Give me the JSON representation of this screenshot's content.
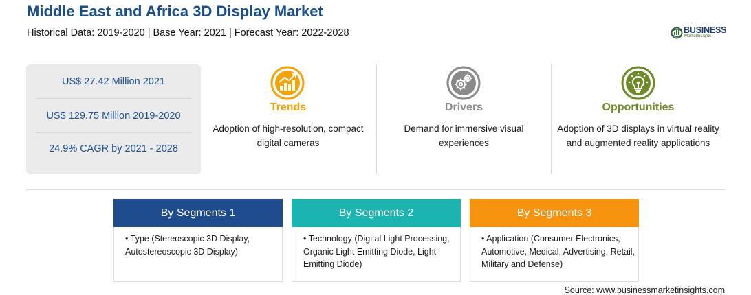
{
  "header": {
    "title": "Middle East and Africa 3D Display Market",
    "subtitle": "Historical Data: 2019-2020 | Base Year: 2021 | Forecast Year: 2022-2028"
  },
  "logo": {
    "name": "BUSINESS",
    "tagline": "MarketInsights"
  },
  "stats": [
    "US$ 27.42 Million 2021",
    "US$ 129.75 Million 2019-2020",
    "24.9% CAGR by 2021 - 2028"
  ],
  "columns": [
    {
      "heading": "Trends",
      "icon": "trending-chart-icon",
      "color": "#f0a30a",
      "description": "Adoption of high-resolution, compact digital cameras"
    },
    {
      "heading": "Drivers",
      "icon": "gears-icon",
      "color": "#8a8a8a",
      "description": "Demand for immersive visual experiences"
    },
    {
      "heading": "Opportunities",
      "icon": "lightbulb-icon",
      "color": "#6e8a2a",
      "description": "Adoption of 3D displays in virtual reality and augmented reality applications"
    }
  ],
  "segments": [
    {
      "title": "By Segments 1",
      "color": "#1d4b8c",
      "text": "• Type (Stereoscopic 3D Display, Autostereoscopic 3D Display)"
    },
    {
      "title": "By Segments 2",
      "color": "#1bb5b1",
      "text": "• Technology (Digital Light Processing, Organic Light Emitting Diode, Light Emitting Diode)"
    },
    {
      "title": "By Segments 3",
      "color": "#f7930e",
      "text": "• Application (Consumer Electronics, Automotive, Medical, Advertising, Retail, Military and Defense)"
    }
  ],
  "source": "Source: www.businessmarketinsights.com"
}
